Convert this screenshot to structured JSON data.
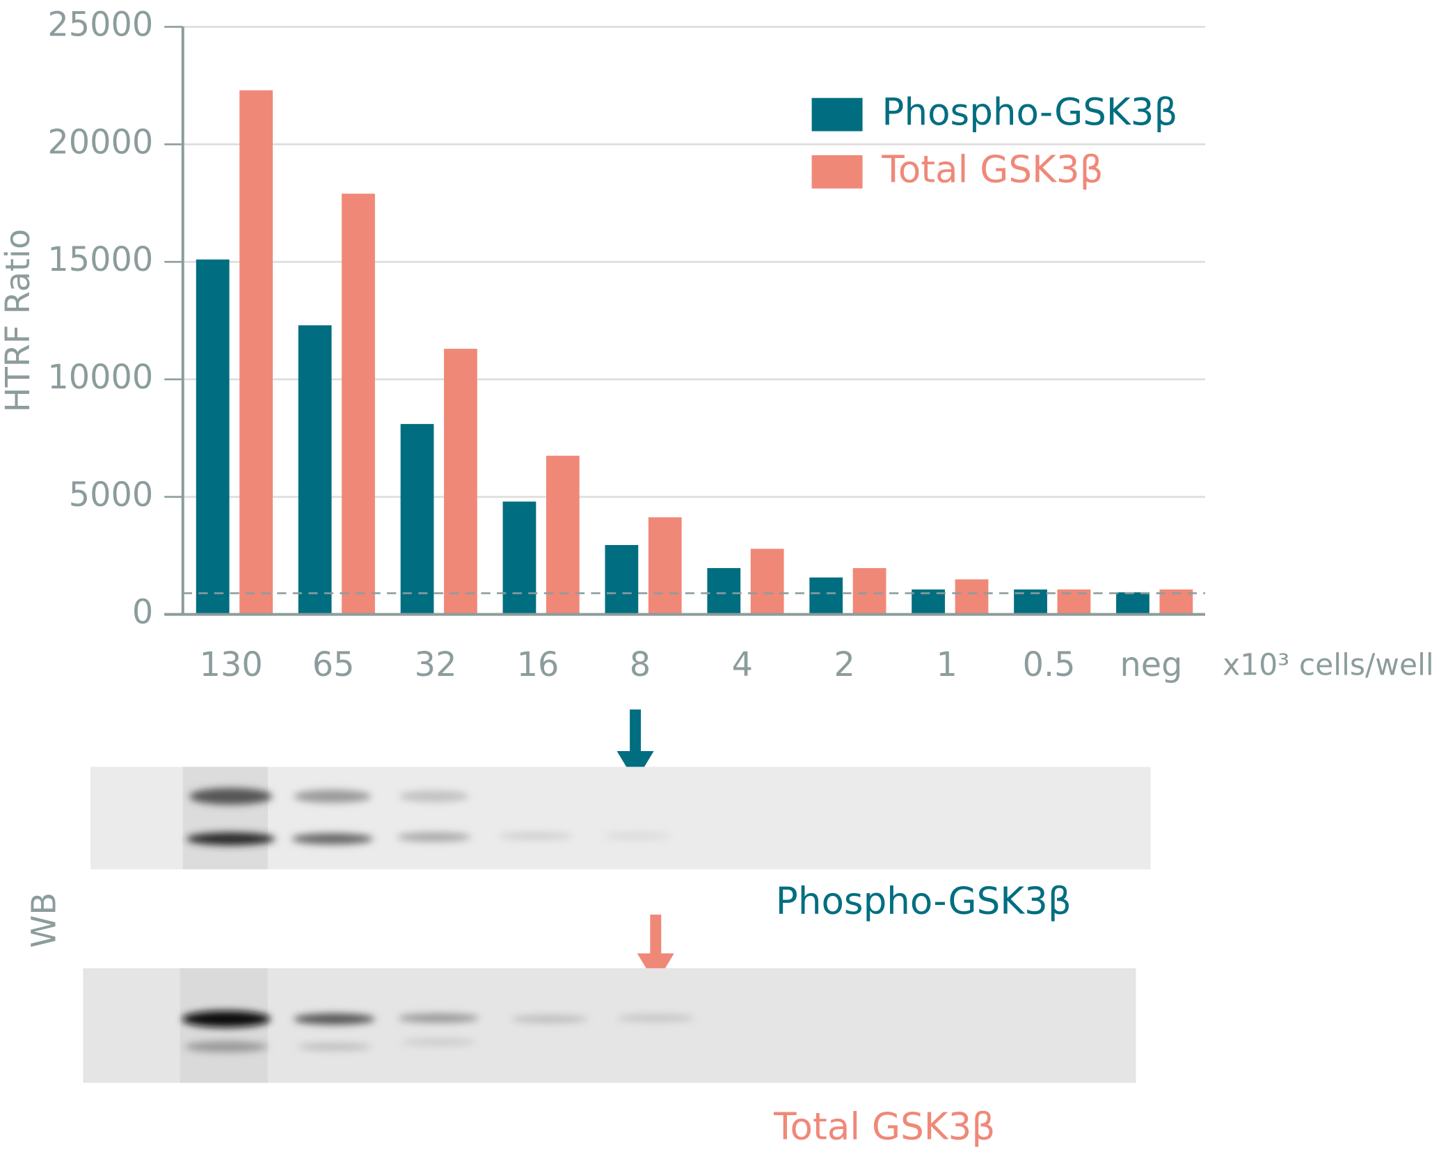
{
  "chart_data": {
    "type": "bar",
    "y_label": "HTRF Ratio",
    "x_unit_label": "x10³ cells/well",
    "categories": [
      "130",
      "65",
      "32",
      "16",
      "8",
      "4",
      "2",
      "1",
      "0.5",
      "neg"
    ],
    "series": [
      {
        "name": "Phospho-GSK3β",
        "color": "#006e80",
        "values": [
          15100,
          12300,
          8100,
          4800,
          2950,
          1970,
          1570,
          1060,
          1060,
          940
        ]
      },
      {
        "name": "Total GSK3β",
        "color": "#f08878",
        "values": [
          22300,
          17900,
          11300,
          6750,
          4130,
          2790,
          1970,
          1490,
          1060,
          1060
        ]
      }
    ],
    "threshold": 900,
    "ylim": [
      0,
      25000
    ],
    "yticks": [
      0,
      5000,
      10000,
      15000,
      20000,
      25000
    ],
    "grid": true,
    "legend": "top-right"
  },
  "western_blot": {
    "label": "WB",
    "panels": [
      {
        "label": "Phospho-GSK3β"
      },
      {
        "label": "Total GSK3β"
      }
    ]
  }
}
